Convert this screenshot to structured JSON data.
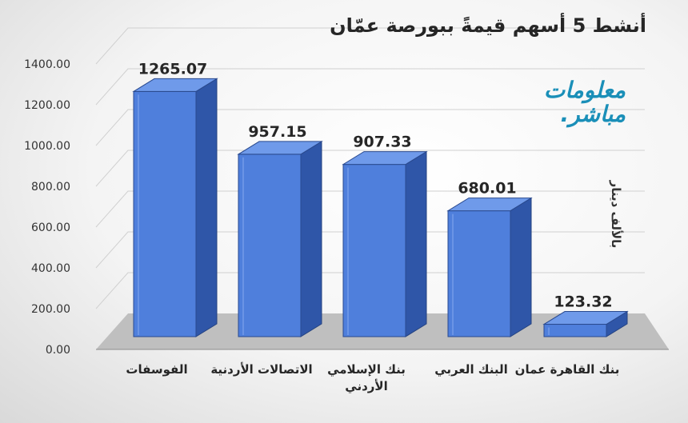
{
  "chart_data": {
    "type": "bar",
    "title": "أنشط 5 أسهم قيمةً ببورصة عمّان",
    "ylabel": "بالألف دينار",
    "categories": [
      "الفوسفات",
      "الاتصالات الأردنية",
      "بنك الإسلامي الأردني",
      "البنك العربي",
      "بنك القاهرة عمان"
    ],
    "values": [
      1265.07,
      957.15,
      907.33,
      680.01,
      123.32
    ],
    "value_labels": [
      "1265.07",
      "957.15",
      "907.33",
      "680.01",
      "123.32"
    ],
    "ylim": [
      0,
      1400
    ],
    "yticks": [
      "0.00",
      "200.00",
      "400.00",
      "600.00",
      "800.00",
      "1000.00",
      "1200.00",
      "1400.00"
    ],
    "grid": true,
    "legend": "none",
    "bar_color": "#4f7fdc"
  },
  "logo": {
    "line1": "معلومات",
    "line2": "مباشر."
  }
}
